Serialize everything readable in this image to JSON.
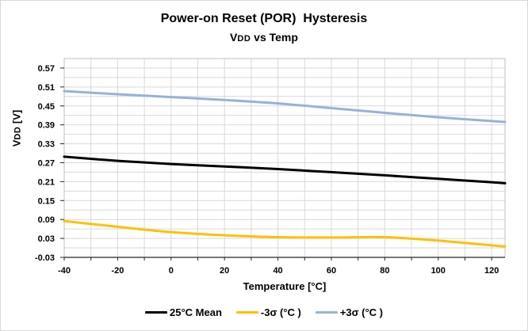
{
  "header": {
    "title": "Power-on Reset (POR)  Hysteresis",
    "subtitle_main": "V",
    "subtitle_sub": "DD",
    "subtitle_rest": " vs Temp"
  },
  "y_axis": {
    "label_main": "V",
    "label_sub": "DD",
    "label_rest": " [V]"
  },
  "x_axis": {
    "title": "Temperature [°C]"
  },
  "legend": [
    {
      "label": "25°C Mean",
      "color": "#000000"
    },
    {
      "label": "-3σ (°C )",
      "color": "#FFC000"
    },
    {
      "label": "+3σ (°C )",
      "color": "#95B3D7"
    }
  ],
  "chart_data": {
    "type": "line",
    "title": "Power-on Reset (POR)  Hysteresis",
    "subtitle": "VDD vs Temp",
    "xlabel": "Temperature [°C]",
    "ylabel": "VDD [V]",
    "xlim": [
      -40,
      125
    ],
    "ylim": [
      -0.03,
      0.6
    ],
    "grid": true,
    "legend_position": "bottom",
    "x_tick_labels": [
      "-40",
      "-20",
      "0",
      "20",
      "40",
      "60",
      "80",
      "100",
      "120"
    ],
    "x_tick_values": [
      -40,
      -20,
      0,
      20,
      40,
      60,
      80,
      100,
      120
    ],
    "x_minor_step": 10,
    "y_tick_labels": [
      "0.57",
      "0.51",
      "0.45",
      "0.39",
      "0.33",
      "0.27",
      "0.21",
      "0.15",
      "0.09",
      "0.03",
      "-0.03"
    ],
    "y_tick_values": [
      0.57,
      0.51,
      0.45,
      0.39,
      0.33,
      0.27,
      0.21,
      0.15,
      0.09,
      0.03,
      -0.03
    ],
    "y_minor_step": 0.03,
    "x": [
      -40,
      -20,
      0,
      20,
      40,
      60,
      80,
      100,
      120,
      125
    ],
    "series": [
      {
        "name": "25°C Mean",
        "color": "#000000",
        "values": [
          0.289,
          0.276,
          0.266,
          0.258,
          0.25,
          0.24,
          0.23,
          0.219,
          0.208,
          0.205
        ]
      },
      {
        "name": "-3σ (°C )",
        "color": "#FFC000",
        "values": [
          0.085,
          0.067,
          0.05,
          0.04,
          0.034,
          0.033,
          0.034,
          0.023,
          0.008,
          0.005
        ]
      },
      {
        "name": "+3σ (°C )",
        "color": "#95B3D7",
        "values": [
          0.497,
          0.487,
          0.478,
          0.469,
          0.458,
          0.443,
          0.428,
          0.414,
          0.402,
          0.399
        ]
      }
    ],
    "colors": {
      "grid": "#D9D9D9",
      "plot_border": "#BFBFBF",
      "axis_line": "#262626",
      "tick": "#262626"
    }
  }
}
